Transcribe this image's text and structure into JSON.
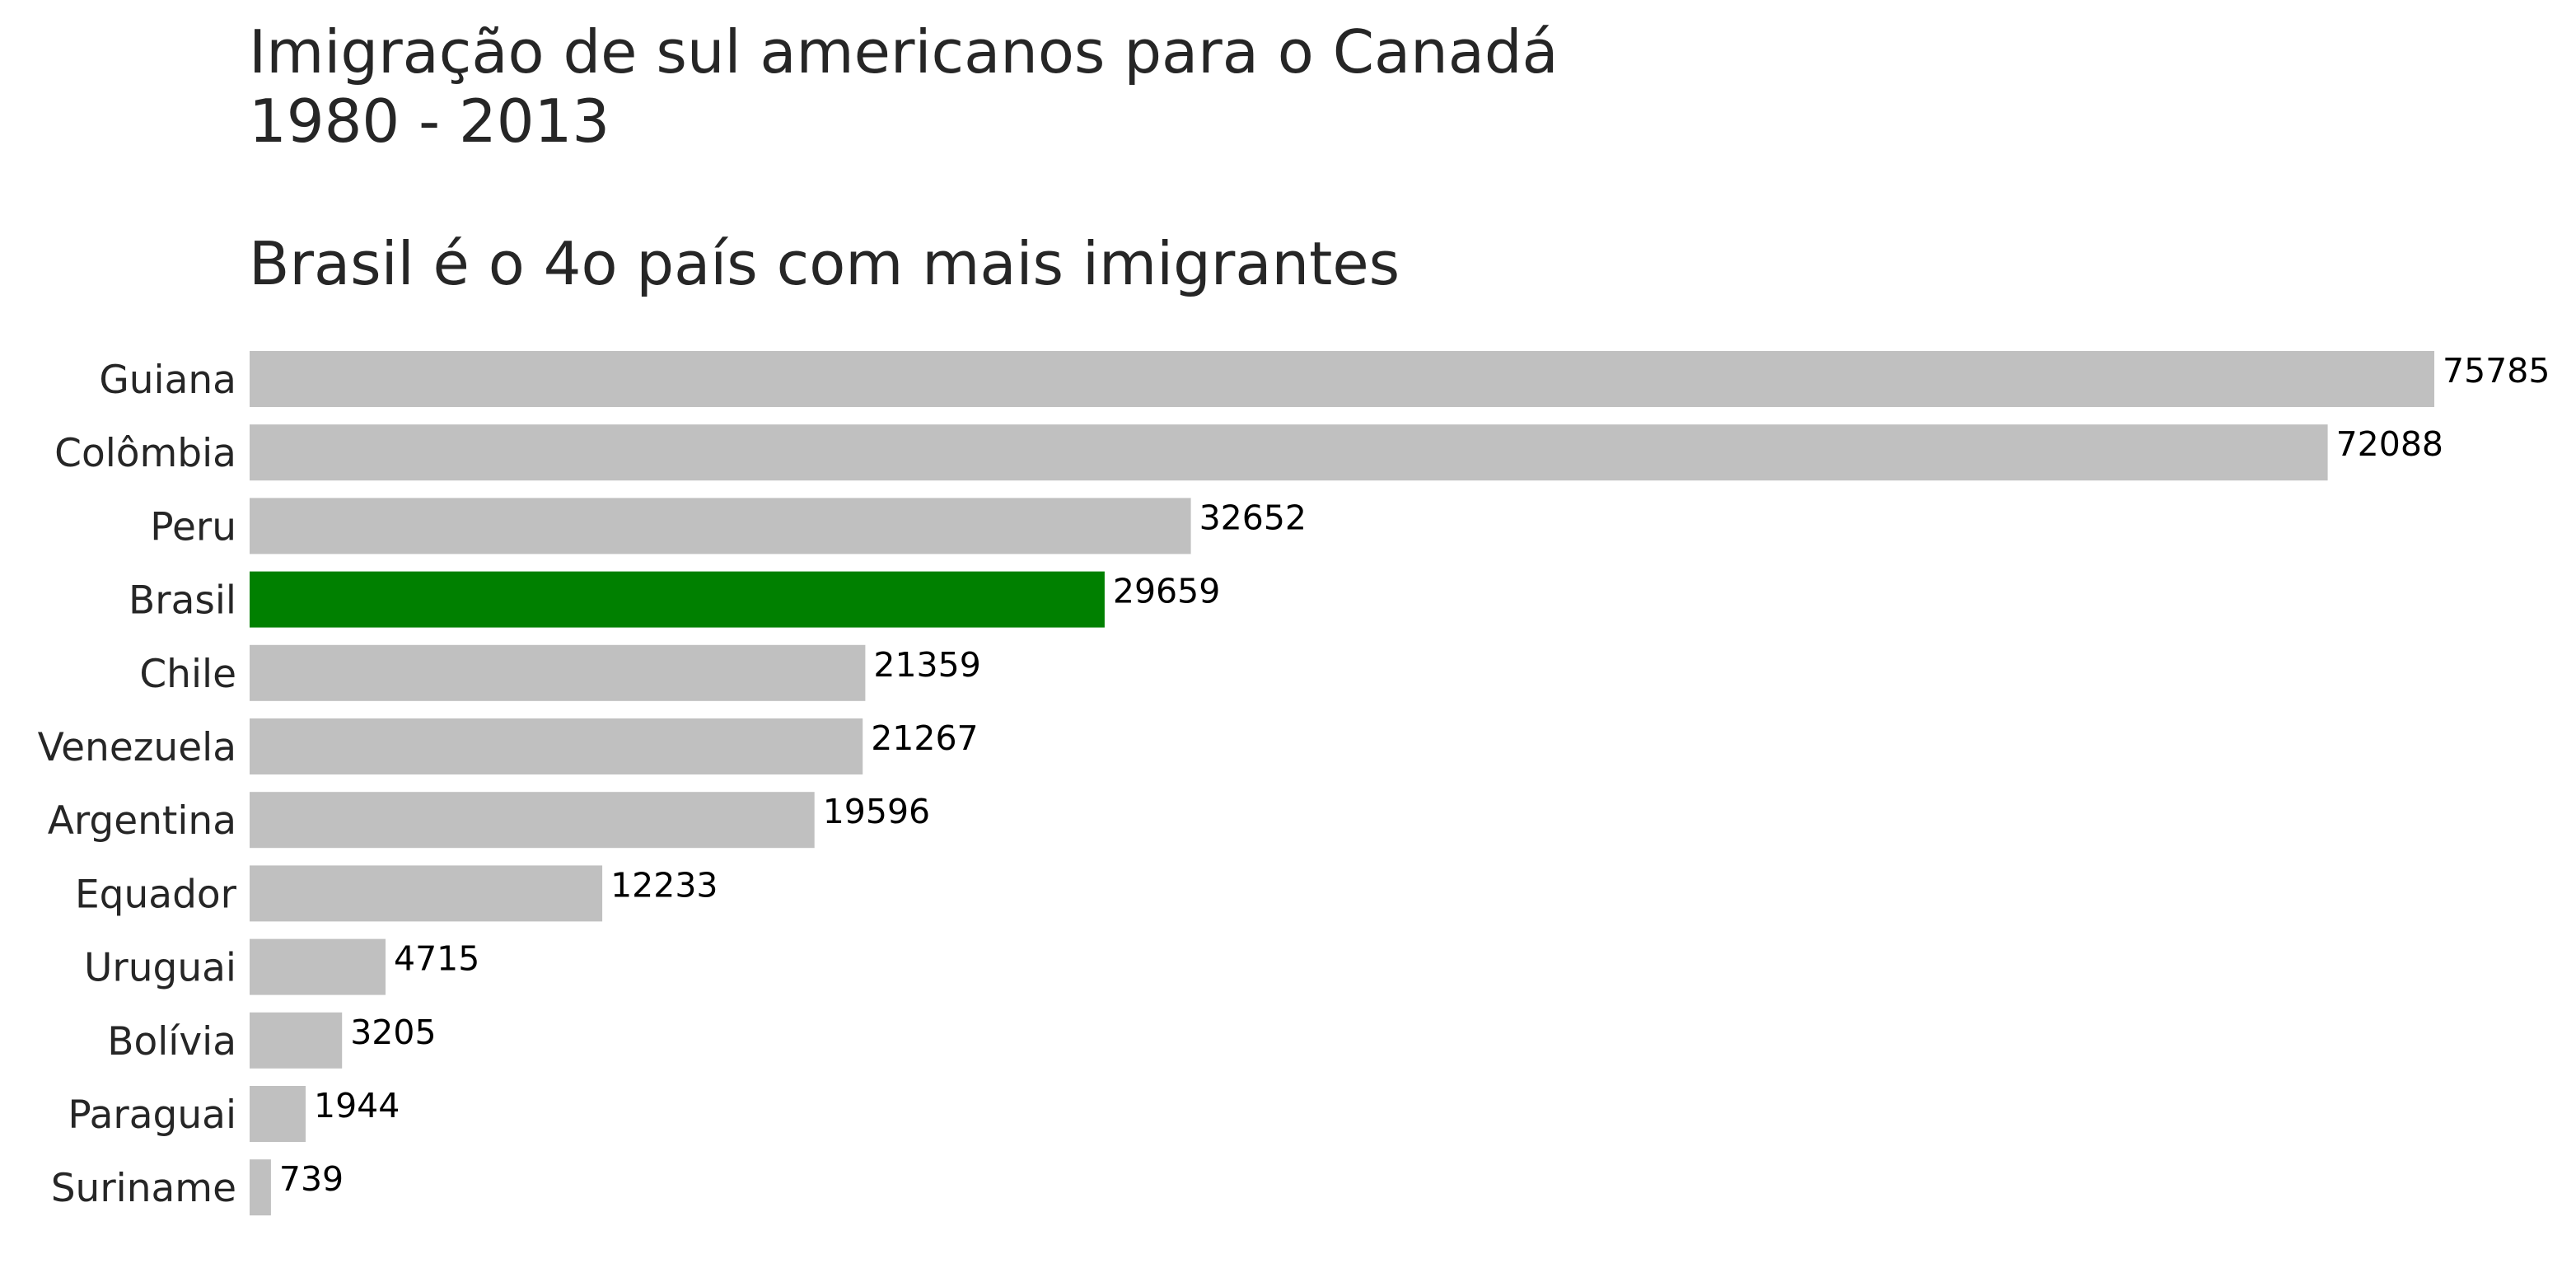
{
  "chart_data": {
    "type": "bar",
    "orientation": "horizontal",
    "title_lines": [
      "Imigração de sul americanos para o Canadá",
      "1980 - 2013"
    ],
    "subtitle": "Brasil é o 4o país com mais imigrantes",
    "xlabel": "",
    "ylabel": "",
    "grid": false,
    "categories": [
      "Guiana",
      "Colômbia",
      "Peru",
      "Brasil",
      "Chile",
      "Venezuela",
      "Argentina",
      "Equador",
      "Uruguai",
      "Bolívia",
      "Paraguai",
      "Suriname"
    ],
    "values": [
      75785,
      72088,
      32652,
      29659,
      21359,
      21267,
      19596,
      12233,
      4715,
      3205,
      1944,
      739
    ],
    "highlight": "Brasil",
    "colors": {
      "default": "#c0c0c0",
      "highlight": "#008000"
    }
  }
}
